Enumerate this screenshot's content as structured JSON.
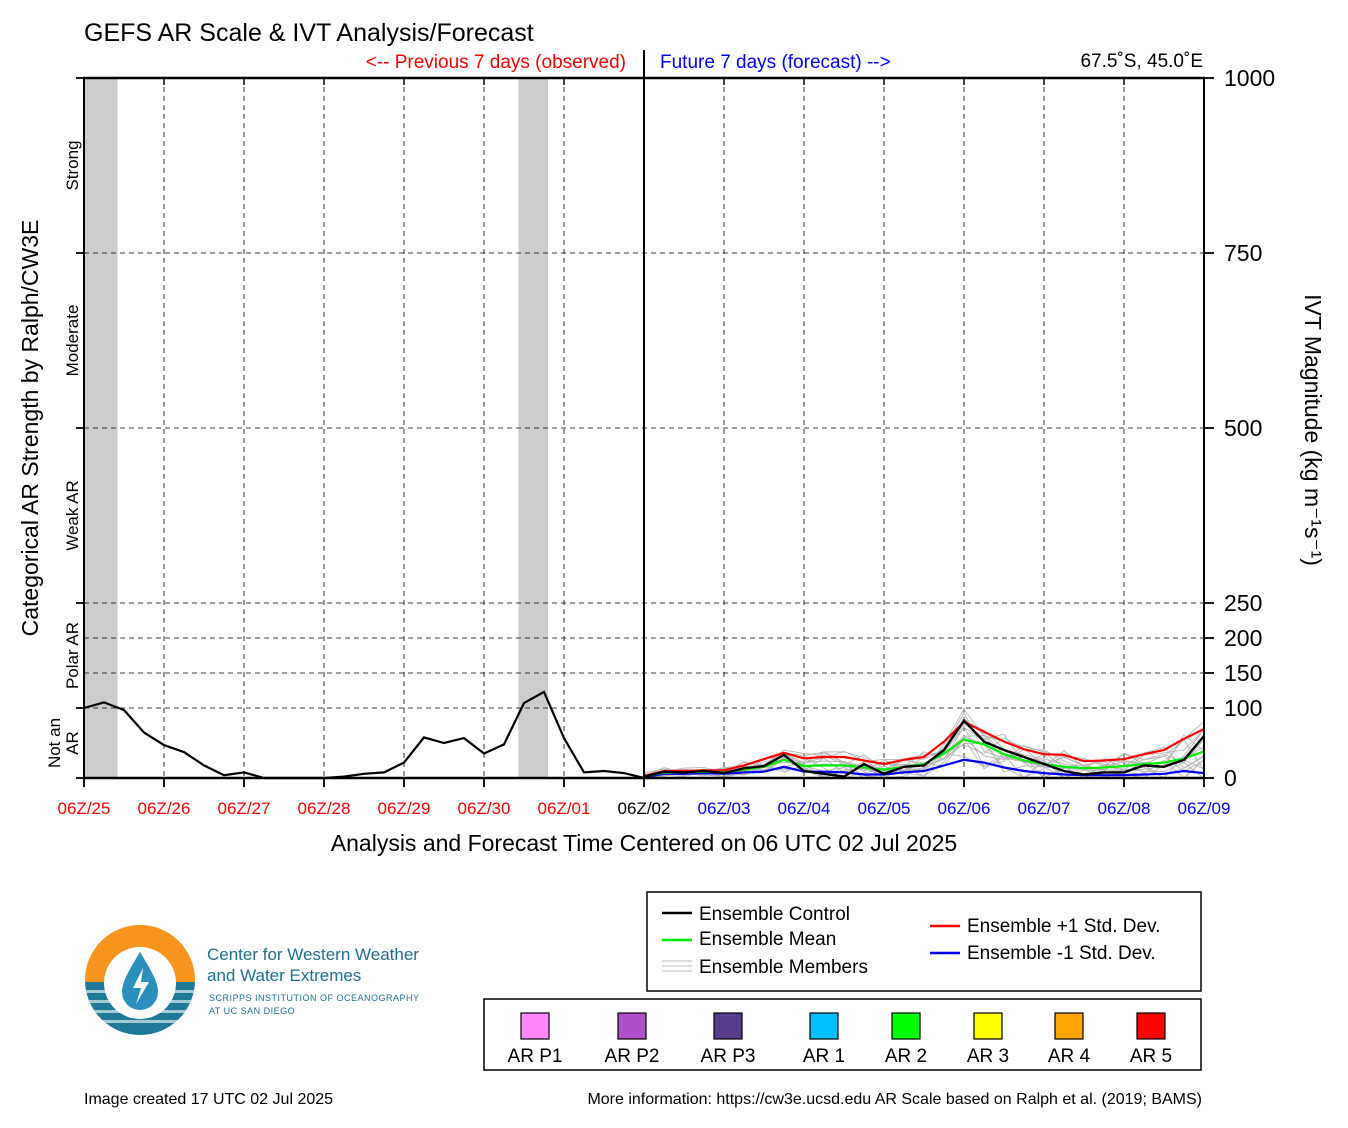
{
  "title": "GEFS AR Scale & IVT Analysis/Forecast",
  "header": {
    "previous_label": "<-- Previous 7 days (observed)",
    "future_label": "Future 7 days (forecast) -->",
    "location": "67.5˚S, 45.0˚E",
    "previous_color": "#ff0000",
    "future_color": "#0000ff"
  },
  "chart_data": {
    "type": "line",
    "title": "GEFS AR Scale & IVT Analysis/Forecast",
    "xlabel": "Analysis and Forecast Time Centered on 06 UTC 02 Jul 2025",
    "ylabel_left": "Categorical AR Strength by Ralph/CW3E",
    "ylabel_right": "IVT Magnitude (kg m⁻¹s⁻¹)",
    "y_ticks": [
      {
        "value": 0,
        "label": "0"
      },
      {
        "value": 100,
        "label": "100"
      },
      {
        "value": 150,
        "label": "150"
      },
      {
        "value": 200,
        "label": "200"
      },
      {
        "value": 250,
        "label": "250"
      },
      {
        "value": 500,
        "label": "500"
      },
      {
        "value": 750,
        "label": "750"
      },
      {
        "value": 1000,
        "label": "1000"
      }
    ],
    "ylim": [
      0,
      1000
    ],
    "xlim": [
      0,
      14
    ],
    "x_unit": "days from 06Z/25 Jun 2025",
    "grid": true,
    "x_ticks": [
      {
        "value": 0,
        "label": "06Z/25",
        "color": "#ff0000"
      },
      {
        "value": 1,
        "label": "06Z/26",
        "color": "#ff0000"
      },
      {
        "value": 2,
        "label": "06Z/27",
        "color": "#ff0000"
      },
      {
        "value": 3,
        "label": "06Z/28",
        "color": "#ff0000"
      },
      {
        "value": 4,
        "label": "06Z/29",
        "color": "#ff0000"
      },
      {
        "value": 5,
        "label": "06Z/30",
        "color": "#ff0000"
      },
      {
        "value": 6,
        "label": "06Z/01",
        "color": "#ff0000"
      },
      {
        "value": 7,
        "label": "06Z/02",
        "color": "#000000"
      },
      {
        "value": 8,
        "label": "06Z/03",
        "color": "#0000ff"
      },
      {
        "value": 9,
        "label": "06Z/04",
        "color": "#0000ff"
      },
      {
        "value": 10,
        "label": "06Z/05",
        "color": "#0000ff"
      },
      {
        "value": 11,
        "label": "06Z/06",
        "color": "#0000ff"
      },
      {
        "value": 12,
        "label": "06Z/07",
        "color": "#0000ff"
      },
      {
        "value": 13,
        "label": "06Z/08",
        "color": "#0000ff"
      },
      {
        "value": 14,
        "label": "06Z/09",
        "color": "#0000ff"
      }
    ],
    "categories": [
      {
        "label": "Not an AR",
        "lines": [
          "Not an",
          "AR"
        ],
        "from": 0,
        "to": 100
      },
      {
        "label": "Polar AR",
        "lines": [
          "Polar AR"
        ],
        "from": 100,
        "to": 250
      },
      {
        "label": "Weak AR",
        "lines": [
          "Weak AR"
        ],
        "from": 250,
        "to": 500
      },
      {
        "label": "Moderate",
        "lines": [
          "Moderate"
        ],
        "from": 500,
        "to": 750
      },
      {
        "label": "Strong",
        "lines": [
          "Strong"
        ],
        "from": 750,
        "to": 1000
      }
    ],
    "ar_periods": [
      {
        "start": 0,
        "end": 0.42
      },
      {
        "start": 5.43,
        "end": 5.8
      }
    ],
    "observed": {
      "x": [
        0,
        0.25,
        0.5,
        0.75,
        1,
        1.25,
        1.5,
        1.75,
        2,
        2.25,
        2.5,
        2.75,
        3,
        3.25,
        3.5,
        3.75,
        4,
        4.25,
        4.5,
        4.75,
        5,
        5.25,
        5.5,
        5.75,
        6,
        6.25,
        6.5,
        6.75,
        7
      ],
      "y": [
        100,
        108,
        97,
        65,
        47,
        37,
        18,
        4,
        8,
        0,
        0,
        0,
        0,
        2,
        6,
        8,
        22,
        58,
        50,
        57,
        35,
        48,
        107,
        123,
        57,
        8,
        10,
        7,
        0
      ]
    },
    "series": [
      {
        "name": "Ensemble Control",
        "color": "#000000",
        "x": [
          7,
          7.25,
          7.5,
          7.75,
          8,
          8.25,
          8.5,
          8.75,
          9,
          9.25,
          9.5,
          9.75,
          10,
          10.25,
          10.5,
          10.75,
          11,
          11.25,
          11.5,
          11.75,
          12,
          12.25,
          12.5,
          12.75,
          13,
          13.25,
          13.5,
          13.75,
          14
        ],
        "y": [
          2,
          9,
          8,
          10,
          7,
          14,
          17,
          33,
          10,
          6,
          2,
          20,
          6,
          16,
          18,
          40,
          82,
          52,
          40,
          30,
          20,
          10,
          5,
          8,
          8,
          18,
          16,
          26,
          60
        ]
      },
      {
        "name": "Ensemble Mean",
        "color": "#00ee00",
        "x": [
          7,
          7.25,
          7.5,
          7.75,
          8,
          8.25,
          8.5,
          8.75,
          9,
          9.25,
          9.5,
          9.75,
          10,
          10.25,
          10.5,
          10.75,
          11,
          11.25,
          11.5,
          11.75,
          12,
          12.25,
          12.5,
          12.75,
          13,
          13.25,
          13.5,
          13.75,
          14
        ],
        "y": [
          2,
          8,
          8,
          9,
          8,
          12,
          16,
          26,
          17,
          18,
          18,
          15,
          12,
          16,
          20,
          35,
          55,
          48,
          34,
          25,
          20,
          16,
          14,
          15,
          17,
          20,
          22,
          28,
          38
        ]
      },
      {
        "name": "Ensemble +1 Std. Dev.",
        "color": "#ff0000",
        "x": [
          7,
          7.25,
          7.5,
          7.75,
          8,
          8.25,
          8.5,
          8.75,
          9,
          9.25,
          9.5,
          9.75,
          10,
          10.25,
          10.5,
          10.75,
          11,
          11.25,
          11.5,
          11.75,
          12,
          12.25,
          12.5,
          12.75,
          13,
          13.25,
          13.5,
          13.75,
          14
        ],
        "y": [
          3,
          10,
          10,
          11,
          11,
          18,
          27,
          36,
          28,
          30,
          30,
          25,
          20,
          26,
          30,
          52,
          80,
          66,
          52,
          41,
          34,
          33,
          24,
          25,
          27,
          34,
          40,
          56,
          70
        ]
      },
      {
        "name": "Ensemble -1 Std. Dev.",
        "color": "#0000ee",
        "x": [
          7,
          7.25,
          7.5,
          7.75,
          8,
          8.25,
          8.5,
          8.75,
          9,
          9.25,
          9.5,
          9.75,
          10,
          10.25,
          10.5,
          10.75,
          11,
          11.25,
          11.5,
          11.75,
          12,
          12.25,
          12.5,
          12.75,
          13,
          13.25,
          13.5,
          13.75,
          14
        ],
        "y": [
          1,
          6,
          6,
          7,
          6,
          8,
          9,
          16,
          9,
          9,
          8,
          5,
          5,
          8,
          10,
          18,
          26,
          22,
          15,
          10,
          7,
          5,
          4,
          4,
          4,
          5,
          6,
          10,
          7
        ]
      }
    ],
    "members_note": "Ensemble Members"
  },
  "legend": {
    "items": [
      {
        "label": "Ensemble Control",
        "color": "#000000"
      },
      {
        "label": "Ensemble Mean",
        "color": "#00ee00"
      },
      {
        "label": "Ensemble Members",
        "color": "#aaaaaa"
      },
      {
        "label": "Ensemble +1 Std. Dev.",
        "color": "#ff0000"
      },
      {
        "label": "Ensemble -1 Std. Dev.",
        "color": "#0000ee"
      }
    ]
  },
  "ar_scale_legend": [
    {
      "label": "AR P1",
      "color": "#ff88ff"
    },
    {
      "label": "AR P2",
      "color": "#b050c8"
    },
    {
      "label": "AR P3",
      "color": "#5a3c8c"
    },
    {
      "label": "AR 1",
      "color": "#00bfff"
    },
    {
      "label": "AR 2",
      "color": "#00ff00"
    },
    {
      "label": "AR 3",
      "color": "#ffff00"
    },
    {
      "label": "AR 4",
      "color": "#ffa500"
    },
    {
      "label": "AR 5",
      "color": "#ff0000"
    }
  ],
  "logo": {
    "line1": "Center for Western Weather",
    "line2": "and Water Extremes",
    "line3": "SCRIPPS INSTITUTION OF OCEANOGRAPHY",
    "line4": "AT UC SAN DIEGO",
    "orange": "#f7941d",
    "teal": "#1f7a99"
  },
  "footer": {
    "created": "Image created 17 UTC 02 Jul 2025",
    "more_info": "More information: https://cw3e.ucsd.edu AR Scale based on Ralph et al. (2019; BAMS)"
  }
}
